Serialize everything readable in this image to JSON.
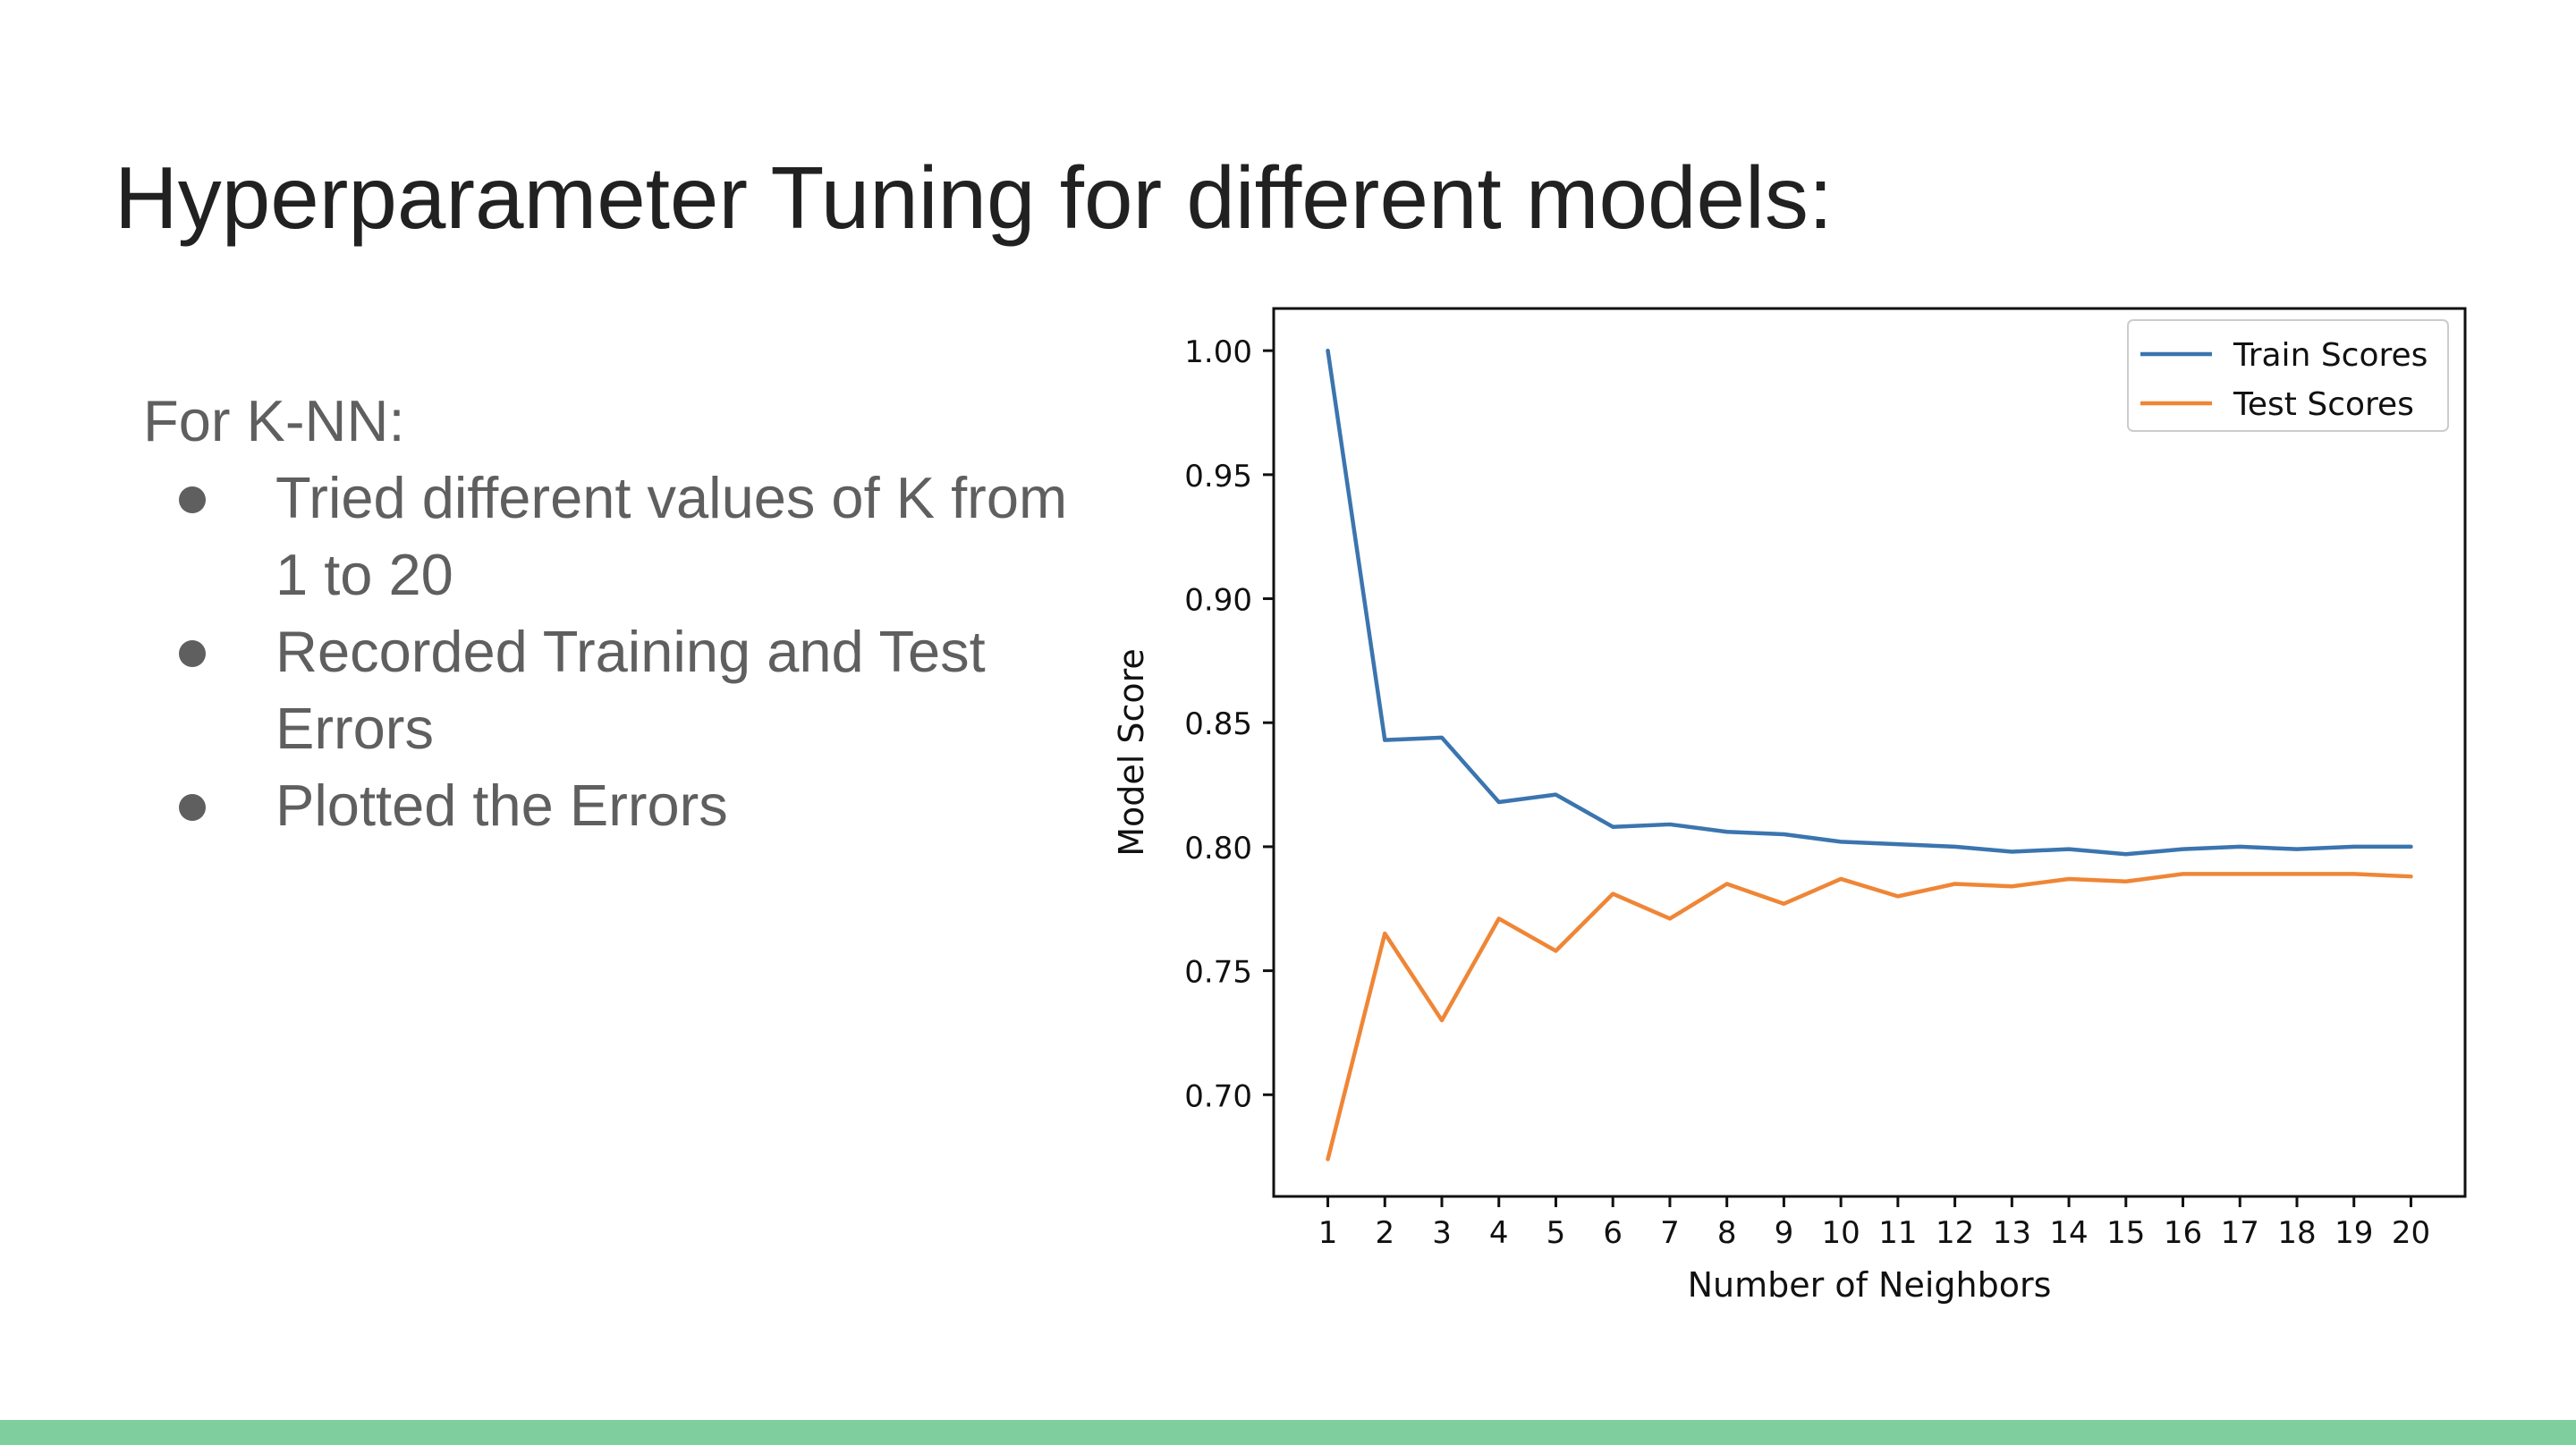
{
  "slide": {
    "title": "Hyperparameter Tuning for different models:",
    "intro": "For K-NN:",
    "bullets": [
      "Tried different values of K from 1 to 20",
      "Recorded Training and Test Errors",
      "Plotted the Errors"
    ],
    "footer_color": "#7fcf9e"
  },
  "chart_data": {
    "type": "line",
    "xlabel": "Number of Neighbors",
    "ylabel": "Model Score",
    "x": [
      1,
      2,
      3,
      4,
      5,
      6,
      7,
      8,
      9,
      10,
      11,
      12,
      13,
      14,
      15,
      16,
      17,
      18,
      19,
      20
    ],
    "ylim": [
      0.659,
      1.017
    ],
    "yticks": [
      "1.00",
      "0.95",
      "0.90",
      "0.85",
      "0.80",
      "0.75",
      "0.70"
    ],
    "grid": false,
    "legend_position": "upper right",
    "series": [
      {
        "name": "Train Scores",
        "color": "#3b75af",
        "values": [
          1.0,
          0.843,
          0.844,
          0.818,
          0.821,
          0.808,
          0.809,
          0.806,
          0.805,
          0.802,
          0.801,
          0.8,
          0.798,
          0.799,
          0.797,
          0.799,
          0.8,
          0.799,
          0.8,
          0.8
        ]
      },
      {
        "name": "Test Scores",
        "color": "#ef8636",
        "values": [
          0.674,
          0.765,
          0.73,
          0.771,
          0.758,
          0.781,
          0.771,
          0.785,
          0.777,
          0.787,
          0.78,
          0.785,
          0.784,
          0.787,
          0.786,
          0.789,
          0.789,
          0.789,
          0.789,
          0.788
        ]
      }
    ]
  }
}
